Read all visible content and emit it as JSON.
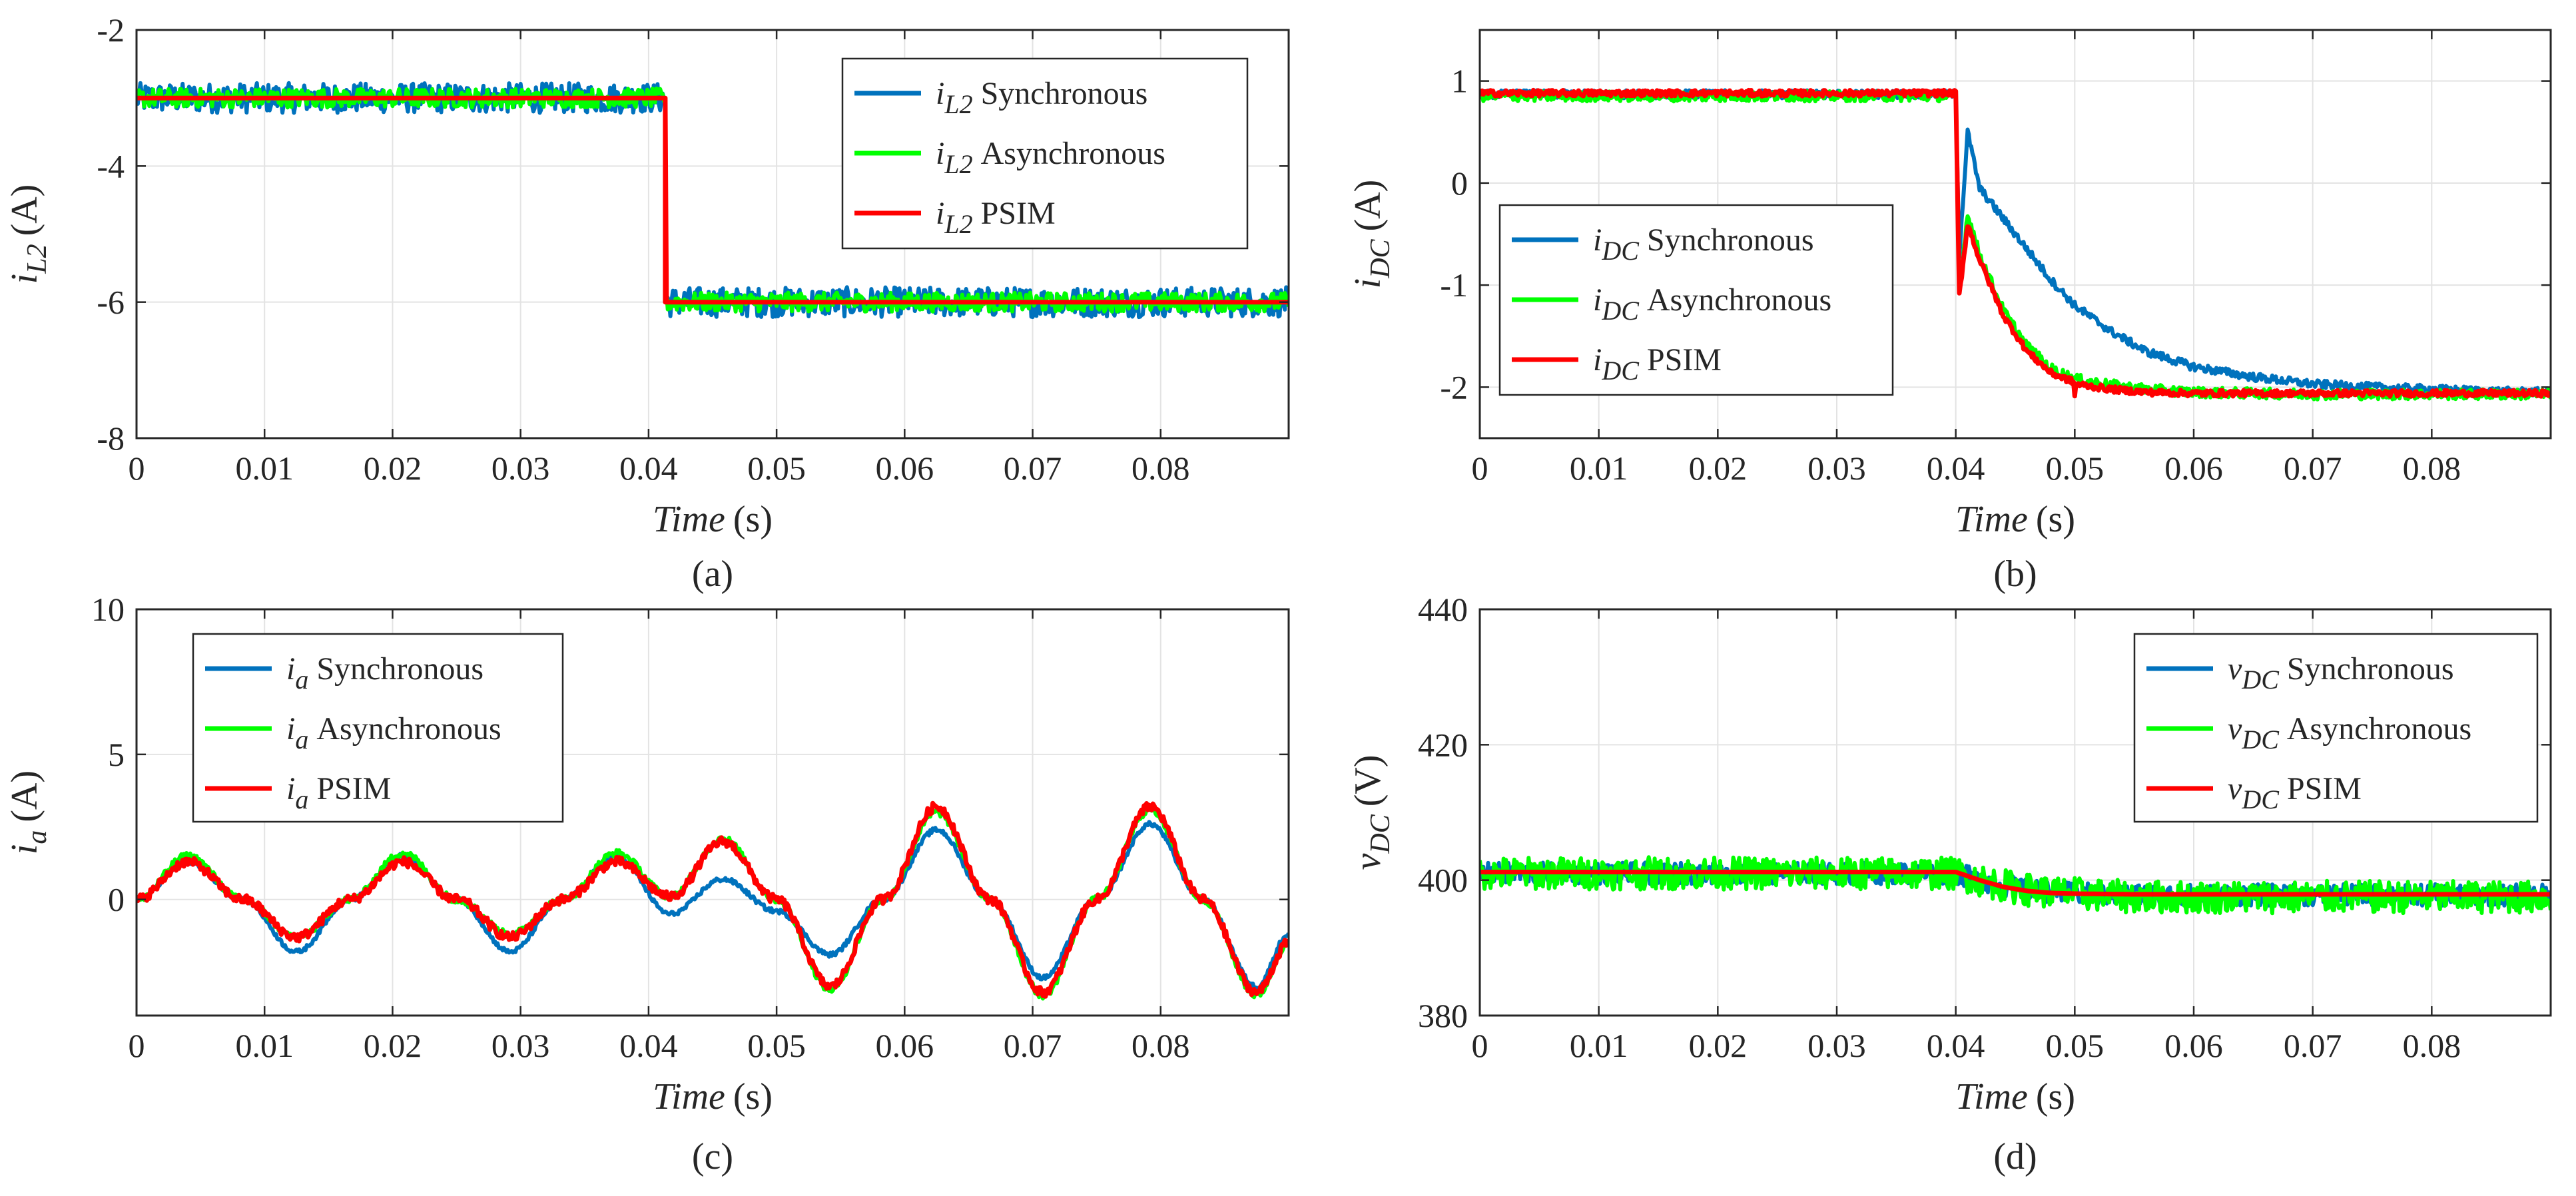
{
  "colors": {
    "synchronous": "#0072BD",
    "asynchronous": "#00FF00",
    "psim": "#FF0000"
  },
  "chart_data": [
    {
      "id": "a",
      "type": "line",
      "caption": "(a)",
      "xlabel_var": "Time",
      "xlabel_unit": "(s)",
      "ylabel_var": "i",
      "ylabel_sub": "L2",
      "ylabel_unit": "(A)",
      "xlim": [
        0,
        0.09
      ],
      "ylim": [
        -8,
        -2
      ],
      "xticks": [
        0,
        0.01,
        0.02,
        0.03,
        0.04,
        0.05,
        0.06,
        0.07,
        0.08
      ],
      "xtick_labels": [
        "0",
        "0.01",
        "0.02",
        "0.03",
        "0.04",
        "0.05",
        "0.06",
        "0.07",
        "0.08"
      ],
      "yticks": [
        -8,
        -6,
        -4,
        -2
      ],
      "ytick_labels": [
        "-8",
        "-6",
        "-4",
        "-2"
      ],
      "grid": true,
      "legend_position": "top-right",
      "series": [
        {
          "var": "i",
          "sub": "L2",
          "name": "Synchronous",
          "x": [
            0,
            0.0413,
            0.0413,
            0.09
          ],
          "y": [
            -3.0,
            -3.0,
            -6.0,
            -6.0
          ]
        },
        {
          "var": "i",
          "sub": "L2",
          "name": "Asynchronous",
          "x": [
            0,
            0.0413,
            0.0413,
            0.09
          ],
          "y": [
            -3.0,
            -3.0,
            -6.0,
            -6.0
          ]
        },
        {
          "var": "i",
          "sub": "L2",
          "name": "PSIM",
          "x": [
            0,
            0.0413,
            0.0413,
            0.09
          ],
          "y": [
            -3.0,
            -3.0,
            -6.0,
            -6.0
          ]
        }
      ]
    },
    {
      "id": "b",
      "type": "line",
      "caption": "(b)",
      "xlabel_var": "Time",
      "xlabel_unit": "(s)",
      "ylabel_var": "i",
      "ylabel_sub": "DC",
      "ylabel_unit": "(A)",
      "xlim": [
        0,
        0.09
      ],
      "ylim": [
        -2.5,
        1.5
      ],
      "xticks": [
        0,
        0.01,
        0.02,
        0.03,
        0.04,
        0.05,
        0.06,
        0.07,
        0.08
      ],
      "xtick_labels": [
        "0",
        "0.01",
        "0.02",
        "0.03",
        "0.04",
        "0.05",
        "0.06",
        "0.07",
        "0.08"
      ],
      "yticks": [
        -2,
        -1,
        0,
        1
      ],
      "ytick_labels": [
        "-2",
        "-1",
        "0",
        "1"
      ],
      "grid": true,
      "legend_position": "left",
      "series": [
        {
          "var": "i",
          "sub": "DC",
          "name": "Synchronous",
          "x": [
            0,
            0.04,
            0.0403,
            0.041,
            0.042,
            0.044,
            0.046,
            0.048,
            0.05,
            0.053,
            0.056,
            0.06,
            0.065,
            0.07,
            0.075,
            0.08,
            0.085,
            0.09
          ],
          "y": [
            0.87,
            0.87,
            -0.7,
            0.5,
            -0.05,
            -0.35,
            -0.65,
            -0.95,
            -1.2,
            -1.45,
            -1.65,
            -1.8,
            -1.9,
            -1.97,
            -2.0,
            -2.02,
            -2.04,
            -2.05
          ]
        },
        {
          "var": "i",
          "sub": "DC",
          "name": "Asynchronous",
          "x": [
            0,
            0.04,
            0.0403,
            0.041,
            0.042,
            0.044,
            0.046,
            0.048,
            0.05,
            0.053,
            0.056,
            0.06,
            0.065,
            0.07,
            0.075,
            0.08,
            0.085,
            0.09
          ],
          "y": [
            0.85,
            0.85,
            -1.05,
            -0.3,
            -0.7,
            -1.25,
            -1.6,
            -1.82,
            -1.92,
            -1.98,
            -2.02,
            -2.05,
            -2.06,
            -2.07,
            -2.07,
            -2.07,
            -2.07,
            -2.07
          ]
        },
        {
          "var": "i",
          "sub": "DC",
          "name": "PSIM",
          "x": [
            0,
            0.04,
            0.0403,
            0.041,
            0.042,
            0.044,
            0.046,
            0.048,
            0.0499,
            0.05,
            0.0501,
            0.053,
            0.056,
            0.06,
            0.065,
            0.07,
            0.08,
            0.09
          ],
          "y": [
            0.88,
            0.88,
            -1.1,
            -0.4,
            -0.75,
            -1.3,
            -1.65,
            -1.86,
            -1.95,
            -2.1,
            -1.97,
            -2.02,
            -2.05,
            -2.06,
            -2.06,
            -2.06,
            -2.06,
            -2.06
          ]
        }
      ]
    },
    {
      "id": "c",
      "type": "line",
      "caption": "(c)",
      "xlabel_var": "Time",
      "xlabel_unit": "(s)",
      "ylabel_var": "i",
      "ylabel_sub": "a",
      "ylabel_unit": "(A)",
      "xlim": [
        0,
        0.09
      ],
      "ylim": [
        -4,
        10
      ],
      "xticks": [
        0,
        0.01,
        0.02,
        0.03,
        0.04,
        0.05,
        0.06,
        0.07,
        0.08
      ],
      "xtick_labels": [
        "0",
        "0.01",
        "0.02",
        "0.03",
        "0.04",
        "0.05",
        "0.06",
        "0.07",
        "0.08"
      ],
      "yticks": [
        0,
        5,
        10
      ],
      "ytick_labels": [
        "0",
        "5",
        "10"
      ],
      "grid": true,
      "legend_position": "top-left",
      "series": [
        {
          "var": "i",
          "sub": "a",
          "name": "Synchronous",
          "x": [
            0,
            0.004,
            0.0083,
            0.0125,
            0.0167,
            0.0208,
            0.025,
            0.0292,
            0.0333,
            0.0375,
            0.0417,
            0.0458,
            0.05,
            0.0542,
            0.0583,
            0.0625,
            0.0667,
            0.0708,
            0.075,
            0.0792,
            0.0833,
            0.0875,
            0.09
          ],
          "y": [
            0,
            1.3,
            0,
            -1.8,
            0,
            1.5,
            0,
            -1.8,
            0,
            1.5,
            -0.5,
            0.7,
            -0.4,
            -1.9,
            0,
            2.4,
            0,
            -2.7,
            0,
            2.6,
            0,
            -3.0,
            -1.2
          ]
        },
        {
          "var": "i",
          "sub": "a",
          "name": "Asynchronous",
          "x": [
            0,
            0.004,
            0.0083,
            0.0125,
            0.0167,
            0.0208,
            0.025,
            0.0292,
            0.0333,
            0.0375,
            0.0417,
            0.0458,
            0.05,
            0.0542,
            0.0583,
            0.0625,
            0.0667,
            0.0708,
            0.075,
            0.0792,
            0.0833,
            0.0875,
            0.09
          ],
          "y": [
            0,
            1.5,
            0,
            -1.3,
            0,
            1.6,
            0,
            -1.2,
            0,
            1.6,
            0.1,
            2.1,
            0,
            -3.1,
            0,
            3.0,
            0,
            -3.3,
            0,
            3.1,
            0,
            -3.3,
            -1.5
          ]
        },
        {
          "var": "i",
          "sub": "a",
          "name": "PSIM",
          "x": [
            0,
            0.004,
            0.0083,
            0.0125,
            0.0167,
            0.0208,
            0.025,
            0.0292,
            0.0333,
            0.0375,
            0.0417,
            0.0458,
            0.05,
            0.0542,
            0.0583,
            0.0625,
            0.0667,
            0.0708,
            0.075,
            0.0792,
            0.0833,
            0.0875,
            0.09
          ],
          "y": [
            0,
            1.3,
            0,
            -1.3,
            0,
            1.3,
            0,
            -1.3,
            0,
            1.3,
            0.1,
            2.0,
            0,
            -3.0,
            0,
            3.2,
            0,
            -3.2,
            0,
            3.2,
            0,
            -3.2,
            -1.5
          ]
        }
      ]
    },
    {
      "id": "d",
      "type": "line",
      "caption": "(d)",
      "xlabel_var": "Time",
      "xlabel_unit": "(s)",
      "ylabel_var": "v",
      "ylabel_sub": "DC",
      "ylabel_unit": "(V)",
      "xlim": [
        0,
        0.09
      ],
      "ylim": [
        380,
        440
      ],
      "xticks": [
        0,
        0.01,
        0.02,
        0.03,
        0.04,
        0.05,
        0.06,
        0.07,
        0.08
      ],
      "xtick_labels": [
        "0",
        "0.01",
        "0.02",
        "0.03",
        "0.04",
        "0.05",
        "0.06",
        "0.07",
        "0.08"
      ],
      "yticks": [
        380,
        400,
        420,
        440
      ],
      "ytick_labels": [
        "380",
        "400",
        "420",
        "440"
      ],
      "grid": true,
      "legend_position": "top-right",
      "series": [
        {
          "var": "v",
          "sub": "DC",
          "name": "Synchronous",
          "x": [
            0,
            0.04,
            0.042,
            0.044,
            0.046,
            0.048,
            0.05,
            0.055,
            0.09
          ],
          "y": [
            401,
            401,
            400,
            399.2,
            398.6,
            398.2,
            398,
            397.8,
            397.8
          ]
        },
        {
          "var": "v",
          "sub": "DC",
          "name": "Asynchronous",
          "x": [
            0,
            0.04,
            0.042,
            0.044,
            0.046,
            0.048,
            0.05,
            0.055,
            0.09
          ],
          "y": [
            401,
            401,
            400,
            399.2,
            398.6,
            398.2,
            398,
            397.5,
            397.5
          ]
        },
        {
          "var": "v",
          "sub": "DC",
          "name": "PSIM",
          "x": [
            0,
            0.04,
            0.042,
            0.044,
            0.046,
            0.048,
            0.05,
            0.055,
            0.09
          ],
          "y": [
            401.2,
            401.2,
            400,
            399,
            398.4,
            398.1,
            398,
            397.9,
            397.9
          ]
        }
      ]
    }
  ]
}
